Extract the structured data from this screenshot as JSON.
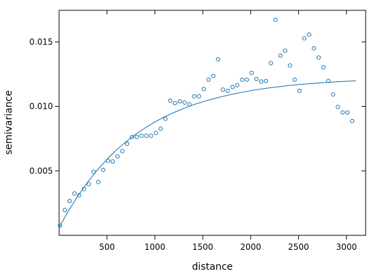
{
  "chart_data": {
    "type": "scatter",
    "xlabel": "distance",
    "ylabel": "semivariance",
    "xlim": [
      0,
      3200
    ],
    "ylim": [
      0,
      0.01745
    ],
    "xticks": [
      500,
      1000,
      1500,
      2000,
      2500,
      3000
    ],
    "xtick_labels": [
      "500",
      "1000",
      "1500",
      "2000",
      "2500",
      "3000"
    ],
    "yticks": [
      0.005,
      0.01,
      0.015
    ],
    "ytick_labels": [
      "0.005",
      "0.010",
      "0.015"
    ],
    "grid": false,
    "legend": "none",
    "point_color": "#1f78b4",
    "line_color": "#1f78b4",
    "points": {
      "x": [
        10,
        60,
        110,
        160,
        210,
        260,
        310,
        360,
        410,
        460,
        510,
        560,
        610,
        660,
        710,
        760,
        810,
        860,
        910,
        960,
        1010,
        1060,
        1110,
        1160,
        1210,
        1260,
        1310,
        1360,
        1410,
        1460,
        1510,
        1560,
        1610,
        1660,
        1710,
        1760,
        1810,
        1860,
        1910,
        1960,
        2010,
        2060,
        2110,
        2160,
        2210,
        2260,
        2310,
        2360,
        2410,
        2460,
        2510,
        2560,
        2610,
        2660,
        2710,
        2760,
        2810,
        2860,
        2910,
        2960,
        3010,
        3060
      ],
      "y": [
        0.00076,
        0.00196,
        0.00266,
        0.00325,
        0.00311,
        0.00359,
        0.00397,
        0.00493,
        0.00413,
        0.00507,
        0.00578,
        0.00573,
        0.00612,
        0.00653,
        0.0071,
        0.00763,
        0.00763,
        0.00772,
        0.00772,
        0.00772,
        0.00794,
        0.00827,
        0.00904,
        0.01044,
        0.01025,
        0.01039,
        0.0103,
        0.01016,
        0.01078,
        0.01078,
        0.01135,
        0.01207,
        0.01236,
        0.01365,
        0.0113,
        0.01121,
        0.0115,
        0.01164,
        0.01207,
        0.01207,
        0.0126,
        0.01212,
        0.01193,
        0.01197,
        0.01336,
        0.01672,
        0.01394,
        0.01432,
        0.01317,
        0.01207,
        0.01121,
        0.01528,
        0.01557,
        0.01451,
        0.01379,
        0.01303,
        0.01197,
        0.01092,
        0.00996,
        0.00953,
        0.00953,
        0.00886
      ]
    },
    "fit_line": {
      "x": [
        0,
        100,
        200,
        300,
        400,
        500,
        600,
        700,
        800,
        900,
        1000,
        1100,
        1200,
        1300,
        1400,
        1500,
        1600,
        1700,
        1800,
        1900,
        2000,
        2100,
        2200,
        2300,
        2400,
        2500,
        2600,
        2700,
        2800,
        2900,
        3000,
        3100
      ],
      "y": [
        0.0006,
        0.00193,
        0.0031,
        0.00415,
        0.00507,
        0.0059,
        0.00663,
        0.00727,
        0.00784,
        0.00834,
        0.00879,
        0.00919,
        0.00953,
        0.00984,
        0.01012,
        0.01036,
        0.01057,
        0.01076,
        0.01093,
        0.01108,
        0.01122,
        0.01134,
        0.01144,
        0.01153,
        0.01162,
        0.01169,
        0.01175,
        0.01181,
        0.01186,
        0.01191,
        0.01195,
        0.01198
      ]
    }
  }
}
